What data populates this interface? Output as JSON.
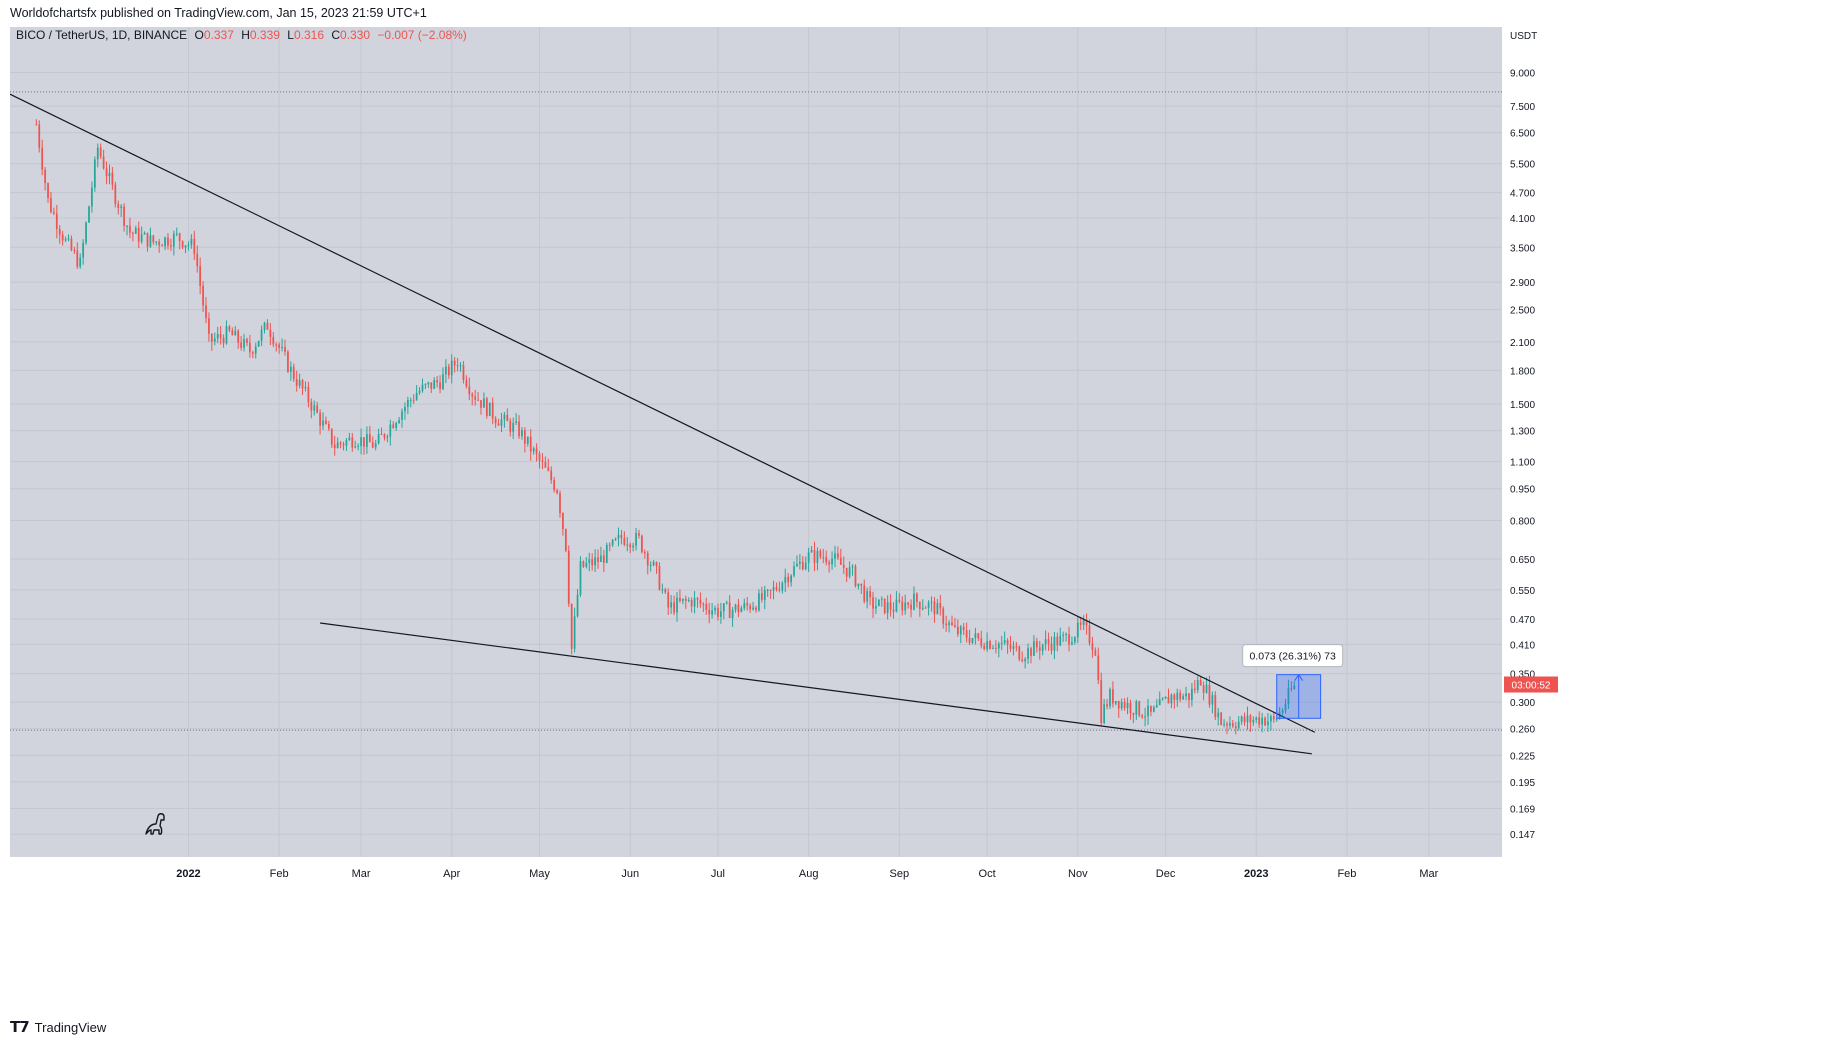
{
  "header": {
    "published": "Worldofchartsfx published on TradingView.com, Jan 15, 2023 21:59 UTC+1"
  },
  "footer": {
    "brand": "TradingView",
    "logo_icon": "tradingview-logo-icon"
  },
  "legend": {
    "symbol": "BICO / TetherUS, 1D, BINANCE",
    "o_label": "O",
    "o_value": "0.337",
    "h_label": "H",
    "h_value": "0.339",
    "l_label": "L",
    "l_value": "0.316",
    "c_label": "C",
    "c_value": "0.330",
    "change": "−0.007 (−2.08%)"
  },
  "colors": {
    "background": "#d1d4dc",
    "up": "#26a69a",
    "down": "#ef5350",
    "trendline": "#131722",
    "measure": "#2962ff",
    "price_tag": "#ef5350"
  },
  "chart_data": {
    "type": "candlestick",
    "symbol": "BICO / TetherUS",
    "interval": "1D",
    "exchange": "BINANCE",
    "y_scale": "log",
    "y_unit": "USDT",
    "ylim": [
      0.13,
      11.5
    ],
    "y_ticks": [
      "9.000",
      "7.500",
      "6.500",
      "5.500",
      "4.700",
      "4.100",
      "3.500",
      "2.900",
      "2.500",
      "2.100",
      "1.800",
      "1.500",
      "1.300",
      "1.100",
      "0.950",
      "0.800",
      "0.650",
      "0.550",
      "0.470",
      "0.410",
      "0.350",
      "0.300",
      "0.260",
      "0.225",
      "0.195",
      "0.169",
      "0.147"
    ],
    "x_ticks": [
      {
        "label": "2022",
        "date": "2022-01-01",
        "bold": true
      },
      {
        "label": "Feb",
        "date": "2022-02-01"
      },
      {
        "label": "Mar",
        "date": "2022-03-01"
      },
      {
        "label": "Apr",
        "date": "2022-04-01"
      },
      {
        "label": "May",
        "date": "2022-05-01"
      },
      {
        "label": "Jun",
        "date": "2022-06-01"
      },
      {
        "label": "Jul",
        "date": "2022-07-01"
      },
      {
        "label": "Aug",
        "date": "2022-08-01"
      },
      {
        "label": "Sep",
        "date": "2022-09-01"
      },
      {
        "label": "Oct",
        "date": "2022-10-01"
      },
      {
        "label": "Nov",
        "date": "2022-11-01"
      },
      {
        "label": "Dec",
        "date": "2022-12-01"
      },
      {
        "label": "2023",
        "date": "2023-01-01",
        "bold": true
      },
      {
        "label": "Feb",
        "date": "2023-02-01"
      },
      {
        "label": "Mar",
        "date": "2023-03-01"
      }
    ],
    "x_range": [
      "2021-11-01",
      "2023-03-26"
    ],
    "price_path": [
      [
        "2021-11-10",
        6.8
      ],
      [
        "2021-11-14",
        4.5
      ],
      [
        "2021-11-20",
        3.6
      ],
      [
        "2021-11-25",
        3.2
      ],
      [
        "2021-12-01",
        6.0
      ],
      [
        "2021-12-06",
        4.8
      ],
      [
        "2021-12-12",
        3.8
      ],
      [
        "2021-12-20",
        3.6
      ],
      [
        "2021-12-28",
        3.7
      ],
      [
        "2022-01-03",
        3.5
      ],
      [
        "2022-01-08",
        2.1
      ],
      [
        "2022-01-15",
        2.2
      ],
      [
        "2022-01-22",
        2.0
      ],
      [
        "2022-01-28",
        2.3
      ],
      [
        "2022-02-05",
        1.8
      ],
      [
        "2022-02-12",
        1.5
      ],
      [
        "2022-02-20",
        1.2
      ],
      [
        "2022-02-27",
        1.25
      ],
      [
        "2022-03-06",
        1.2
      ],
      [
        "2022-03-13",
        1.4
      ],
      [
        "2022-03-20",
        1.6
      ],
      [
        "2022-03-28",
        1.7
      ],
      [
        "2022-04-03",
        1.9
      ],
      [
        "2022-04-08",
        1.6
      ],
      [
        "2022-04-16",
        1.4
      ],
      [
        "2022-04-24",
        1.3
      ],
      [
        "2022-05-01",
        1.1
      ],
      [
        "2022-05-07",
        0.95
      ],
      [
        "2022-05-10",
        0.7
      ],
      [
        "2022-05-12",
        0.4
      ],
      [
        "2022-05-15",
        0.62
      ],
      [
        "2022-05-22",
        0.65
      ],
      [
        "2022-05-29",
        0.73
      ],
      [
        "2022-06-04",
        0.72
      ],
      [
        "2022-06-10",
        0.6
      ],
      [
        "2022-06-14",
        0.5
      ],
      [
        "2022-06-22",
        0.52
      ],
      [
        "2022-07-01",
        0.49
      ],
      [
        "2022-07-10",
        0.5
      ],
      [
        "2022-07-18",
        0.53
      ],
      [
        "2022-07-25",
        0.6
      ],
      [
        "2022-08-01",
        0.66
      ],
      [
        "2022-08-08",
        0.66
      ],
      [
        "2022-08-16",
        0.6
      ],
      [
        "2022-08-22",
        0.51
      ],
      [
        "2022-08-30",
        0.5
      ],
      [
        "2022-09-06",
        0.52
      ],
      [
        "2022-09-13",
        0.5
      ],
      [
        "2022-09-20",
        0.44
      ],
      [
        "2022-09-28",
        0.42
      ],
      [
        "2022-10-06",
        0.41
      ],
      [
        "2022-10-13",
        0.39
      ],
      [
        "2022-10-20",
        0.41
      ],
      [
        "2022-10-27",
        0.42
      ],
      [
        "2022-11-03",
        0.45
      ],
      [
        "2022-11-07",
        0.4
      ],
      [
        "2022-11-09",
        0.28
      ],
      [
        "2022-11-12",
        0.31
      ],
      [
        "2022-11-18",
        0.295
      ],
      [
        "2022-11-26",
        0.28
      ],
      [
        "2022-12-03",
        0.31
      ],
      [
        "2022-12-09",
        0.31
      ],
      [
        "2022-12-13",
        0.34
      ],
      [
        "2022-12-17",
        0.3
      ],
      [
        "2022-12-20",
        0.27
      ],
      [
        "2022-12-27",
        0.27
      ],
      [
        "2023-01-03",
        0.275
      ],
      [
        "2023-01-07",
        0.27
      ],
      [
        "2023-01-10",
        0.29
      ],
      [
        "2023-01-13",
        0.32
      ],
      [
        "2023-01-15",
        0.33
      ]
    ],
    "horizontal_lines": [
      {
        "price": 8.1,
        "style": "dotted"
      },
      {
        "price": 0.258,
        "style": "dotted"
      }
    ],
    "trendlines": [
      {
        "from": [
          "2021-11-01",
          8.0
        ],
        "to": [
          "2023-01-21",
          0.255
        ]
      },
      {
        "from": [
          "2022-02-15",
          0.46
        ],
        "to": [
          "2023-01-20",
          0.227
        ]
      }
    ],
    "measure": {
      "from_date": "2023-01-08",
      "to_date": "2023-01-23",
      "low": 0.275,
      "high": 0.348,
      "label": "0.073 (26.31%) 73"
    },
    "last_price": {
      "value": 0.33,
      "label": "03:00:52"
    }
  }
}
